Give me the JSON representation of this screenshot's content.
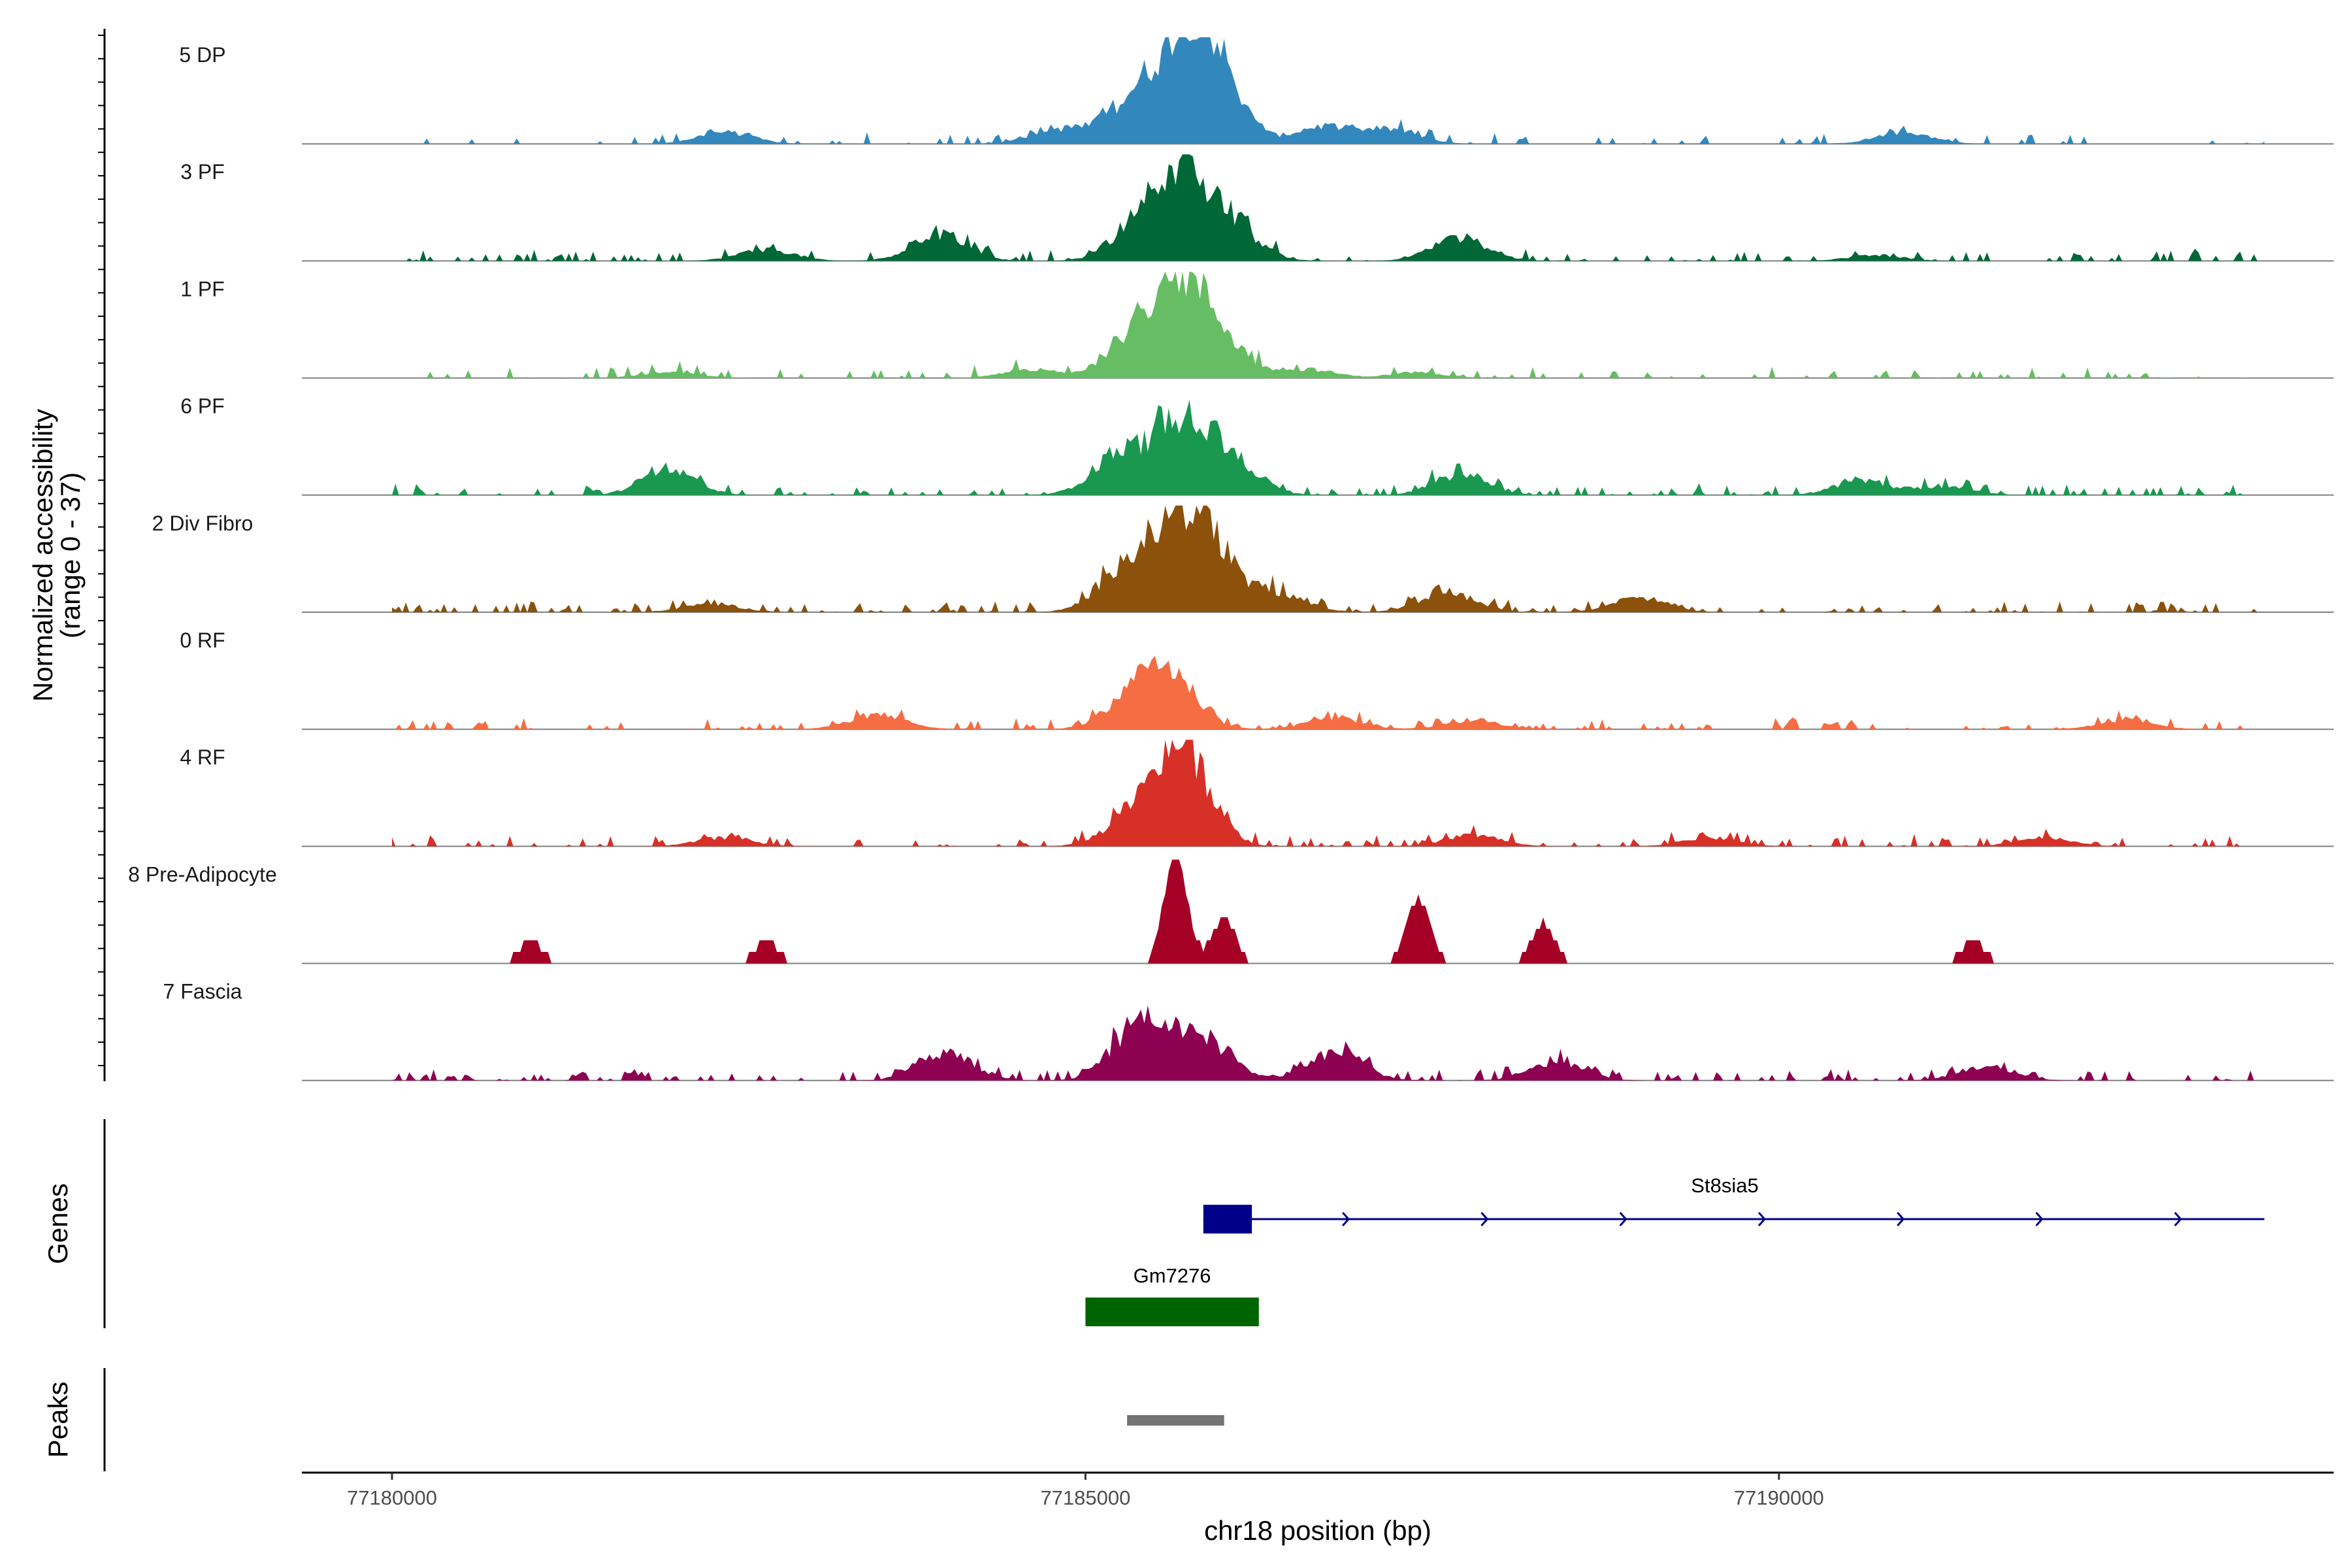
{
  "chart_data": {
    "type": "area",
    "title": "",
    "chromosome": "chr18",
    "x_range": [
      77180000,
      77193500
    ],
    "view_range": [
      77179350,
      77194000
    ],
    "xlabel": "chr18 position (bp)",
    "x_ticks": [
      77180000,
      77185000,
      77190000
    ],
    "x_tick_labels": [
      "77180000",
      "77185000",
      "77190000"
    ],
    "ylabel_line1": "Normalized accessibility",
    "ylabel_line2": "(range 0 - 37)",
    "ylim": [
      0,
      37
    ],
    "genes_label": "Genes",
    "peaks_label": "Peaks",
    "tracks": [
      {
        "name": "5 DP",
        "color": "#3288BD",
        "peaks": [
          [
            77185750,
            37
          ],
          [
            77185350,
            15
          ],
          [
            77185950,
            14
          ],
          [
            77184800,
            5
          ],
          [
            77186700,
            6
          ],
          [
            77187200,
            5
          ],
          [
            77182400,
            4
          ],
          [
            77190900,
            4
          ]
        ],
        "baseline": 0.15
      },
      {
        "name": "3 PF",
        "color": "#006837",
        "peaks": [
          [
            77185700,
            25
          ],
          [
            77185400,
            12
          ],
          [
            77186050,
            11
          ],
          [
            77183950,
            9
          ],
          [
            77187700,
            8
          ],
          [
            77182700,
            4
          ],
          [
            77190700,
            2
          ]
        ],
        "baseline": 0.25
      },
      {
        "name": "1 PF",
        "color": "#66BD63",
        "peaks": [
          [
            77185700,
            30
          ],
          [
            77185350,
            14
          ],
          [
            77186000,
            9
          ],
          [
            77184600,
            3
          ],
          [
            77186600,
            3
          ],
          [
            77187400,
            2
          ],
          [
            77182000,
            2
          ]
        ],
        "baseline": 0.2
      },
      {
        "name": "6 PF",
        "color": "#1A9850",
        "peaks": [
          [
            77185700,
            25
          ],
          [
            77185250,
            14
          ],
          [
            77186050,
            11
          ],
          [
            77182000,
            8
          ],
          [
            77187700,
            7
          ],
          [
            77190600,
            5
          ],
          [
            77191200,
            3
          ]
        ],
        "baseline": 0.3
      },
      {
        "name": "2 Div Fibro",
        "color": "#8C510A",
        "peaks": [
          [
            77185700,
            30
          ],
          [
            77185300,
            16
          ],
          [
            77185950,
            12
          ],
          [
            77187600,
            7
          ],
          [
            77186400,
            6
          ],
          [
            77189000,
            5
          ],
          [
            77182300,
            3
          ]
        ],
        "baseline": 0.3
      },
      {
        "name": "0 RF",
        "color": "#F46D43",
        "peaks": [
          [
            77185600,
            18
          ],
          [
            77185350,
            10
          ],
          [
            77183500,
            5
          ],
          [
            77186800,
            4
          ],
          [
            77187800,
            3
          ],
          [
            77192500,
            3
          ]
        ],
        "baseline": 0.25
      },
      {
        "name": "4 RF",
        "color": "#D73027",
        "peaks": [
          [
            77185700,
            33
          ],
          [
            77185350,
            10
          ],
          [
            77182400,
            3
          ],
          [
            77187800,
            4
          ],
          [
            77189500,
            3
          ],
          [
            77191900,
            3
          ]
        ],
        "baseline": 0.25
      },
      {
        "name": "8 Pre-Adipocyte",
        "color": "#A50026",
        "peaks": [
          [
            77185650,
            37
          ],
          [
            77186000,
            15
          ],
          [
            77187400,
            22
          ],
          [
            77188300,
            14
          ],
          [
            77181000,
            8
          ],
          [
            77182700,
            8
          ],
          [
            77191400,
            8
          ]
        ],
        "baseline": 0,
        "blocky": true
      },
      {
        "name": "7 Fascia",
        "color": "#8E0152",
        "peaks": [
          [
            77185400,
            20
          ],
          [
            77185850,
            14
          ],
          [
            77184000,
            9
          ],
          [
            77186800,
            10
          ],
          [
            77188400,
            6
          ],
          [
            77191500,
            5
          ]
        ],
        "baseline": 0.35
      }
    ],
    "genes": [
      {
        "name": "St8sia5",
        "start": 77185850,
        "end": 77193500,
        "strand": "+",
        "color": "#00008B",
        "exon": [
          77185850,
          77186200
        ]
      },
      {
        "name": "Gm7276",
        "start": 77185000,
        "end": 77186250,
        "strand": "+",
        "color": "#006400"
      }
    ],
    "peak_regions": [
      {
        "start": 77185300,
        "end": 77186000,
        "color": "#737373"
      }
    ]
  }
}
